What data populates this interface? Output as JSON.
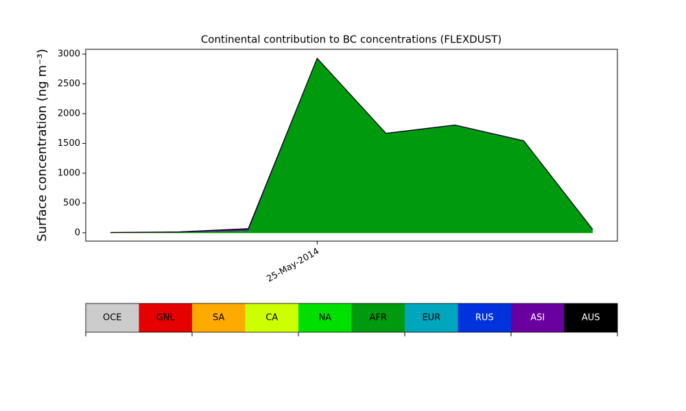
{
  "chart_data": {
    "type": "stacked_area",
    "title": "Continental contribution to BC concentrations (FLEXDUST)",
    "y_label": "Surface concentration (ng m⁻³)",
    "categories": [
      null,
      null,
      null,
      "25-May-2014",
      null,
      null,
      null,
      null
    ],
    "ylim": [
      -140,
      3080
    ],
    "yticks": [
      0,
      500,
      1000,
      1500,
      2000,
      2500,
      3000
    ],
    "series": [
      {
        "name": "OCE",
        "color": "#cccccc",
        "values": [
          0,
          0,
          0,
          0,
          0,
          0,
          0,
          0
        ]
      },
      {
        "name": "GNL",
        "color": "#e60000",
        "values": [
          0,
          0,
          0,
          0,
          0,
          0,
          0,
          0
        ]
      },
      {
        "name": "SA",
        "color": "#ffaa00",
        "values": [
          0,
          0,
          0,
          0,
          0,
          0,
          0,
          0
        ]
      },
      {
        "name": "CA",
        "color": "#ccff00",
        "values": [
          0,
          0,
          0,
          0,
          0,
          0,
          0,
          0
        ]
      },
      {
        "name": "NA",
        "color": "#00e000",
        "values": [
          0,
          0,
          0,
          0,
          0,
          0,
          0,
          0
        ]
      },
      {
        "name": "AFR",
        "color": "#009a0e",
        "values": [
          0,
          10,
          40,
          2925,
          1665,
          1805,
          1540,
          55
        ]
      },
      {
        "name": "EUR",
        "color": "#00a6bd",
        "values": [
          0,
          0,
          0,
          0,
          0,
          0,
          0,
          0
        ]
      },
      {
        "name": "RUS",
        "color": "#0033dd",
        "values": [
          0,
          0,
          0,
          0,
          0,
          0,
          0,
          0
        ]
      },
      {
        "name": "ASI",
        "color": "#6a00a0",
        "values": [
          5,
          5,
          30,
          5,
          5,
          5,
          5,
          5
        ]
      },
      {
        "name": "AUS",
        "color": "#000000",
        "values": [
          0,
          0,
          0,
          0,
          0,
          0,
          0,
          0
        ]
      }
    ]
  }
}
